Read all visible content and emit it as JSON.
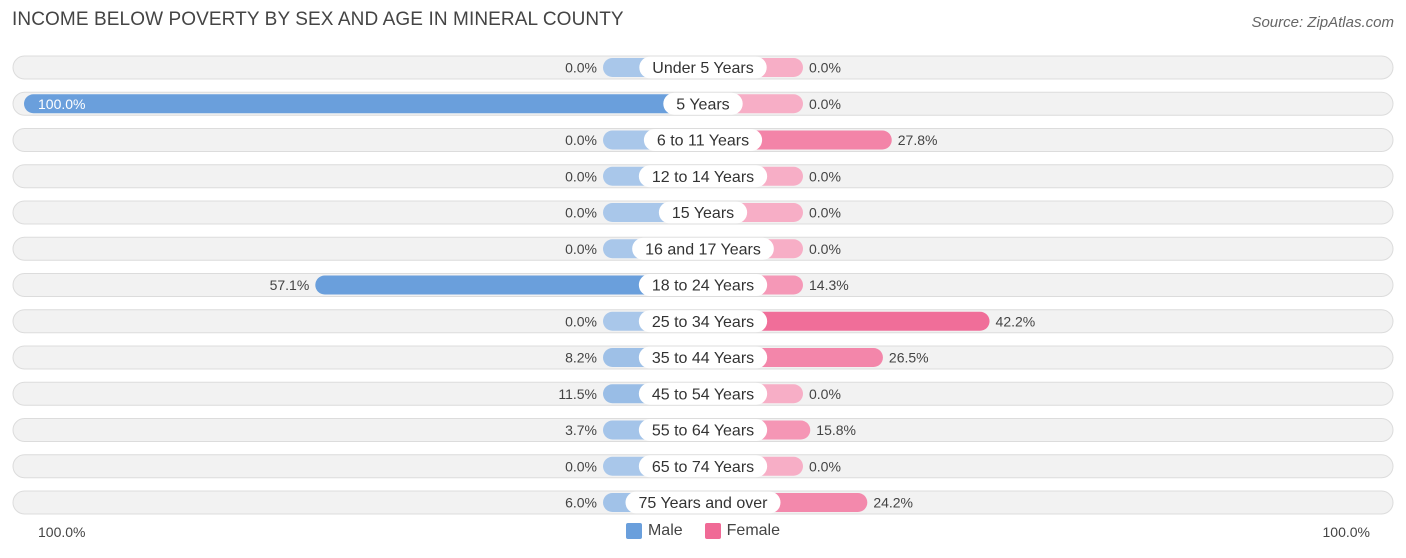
{
  "header": {
    "title": "Income Below Poverty by Sex and Age in Mineral County",
    "source": "Source: ZipAtlas.com"
  },
  "axis": {
    "left_label": "100.0%",
    "right_label": "100.0%"
  },
  "legend": {
    "male_label": "Male",
    "female_label": "Female"
  },
  "colors": {
    "male_strong": "#6a9fdc",
    "male_light": "#a9c7ea",
    "female_strong": "#f06a96",
    "female_light": "#f7aec6",
    "row_bg": "#f2f2f2",
    "row_border": "#dcdcdc"
  },
  "chart_data": {
    "type": "bar",
    "orientation": "horizontal-diverging",
    "title": "Income Below Poverty by Sex and Age in Mineral County",
    "categories": [
      "Under 5 Years",
      "5 Years",
      "6 to 11 Years",
      "12 to 14 Years",
      "15 Years",
      "16 and 17 Years",
      "18 to 24 Years",
      "25 to 34 Years",
      "35 to 44 Years",
      "45 to 54 Years",
      "55 to 64 Years",
      "65 to 74 Years",
      "75 Years and over"
    ],
    "series": [
      {
        "name": "Male",
        "values": [
          0.0,
          100.0,
          0.0,
          0.0,
          0.0,
          0.0,
          57.1,
          0.0,
          8.2,
          11.5,
          3.7,
          0.0,
          6.0
        ],
        "labels": [
          "0.0%",
          "100.0%",
          "0.0%",
          "0.0%",
          "0.0%",
          "0.0%",
          "57.1%",
          "0.0%",
          "8.2%",
          "11.5%",
          "3.7%",
          "0.0%",
          "6.0%"
        ]
      },
      {
        "name": "Female",
        "values": [
          0.0,
          0.0,
          27.8,
          0.0,
          0.0,
          0.0,
          14.3,
          42.2,
          26.5,
          0.0,
          15.8,
          0.0,
          24.2
        ],
        "labels": [
          "0.0%",
          "0.0%",
          "27.8%",
          "0.0%",
          "0.0%",
          "0.0%",
          "14.3%",
          "42.2%",
          "26.5%",
          "0.0%",
          "15.8%",
          "0.0%",
          "24.2%"
        ]
      }
    ],
    "xlim": [
      -100,
      100
    ],
    "xlabel": "",
    "ylabel": "",
    "legend_position": "bottom-center"
  }
}
